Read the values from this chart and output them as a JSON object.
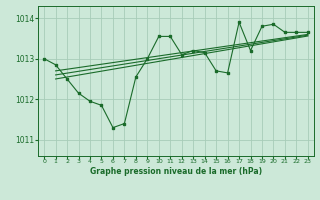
{
  "title": "Graphe pression niveau de la mer (hPa)",
  "background_color": "#cce8d8",
  "grid_color": "#a8ccb8",
  "line_color": "#1a6b2a",
  "xlim": [
    -0.5,
    23.5
  ],
  "ylim": [
    1010.6,
    1014.3
  ],
  "yticks": [
    1011,
    1012,
    1013,
    1014
  ],
  "xticks": [
    0,
    1,
    2,
    3,
    4,
    5,
    6,
    7,
    8,
    9,
    10,
    11,
    12,
    13,
    14,
    15,
    16,
    17,
    18,
    19,
    20,
    21,
    22,
    23
  ],
  "main_x": [
    0,
    1,
    2,
    3,
    4,
    5,
    6,
    7,
    8,
    9,
    10,
    11,
    12,
    13,
    14,
    15,
    16,
    17,
    18,
    19,
    20,
    21,
    22,
    23
  ],
  "main_y": [
    1013.0,
    1012.85,
    1012.5,
    1012.15,
    1011.95,
    1011.85,
    1011.3,
    1011.4,
    1012.55,
    1013.0,
    1013.55,
    1013.55,
    1013.1,
    1013.2,
    1013.15,
    1012.7,
    1012.65,
    1013.9,
    1013.2,
    1013.8,
    1013.85,
    1013.65,
    1013.65,
    1013.65
  ],
  "trend_lines": [
    {
      "x": [
        1,
        23
      ],
      "y": [
        1012.7,
        1013.6
      ]
    },
    {
      "x": [
        1,
        23
      ],
      "y": [
        1012.6,
        1013.58
      ]
    },
    {
      "x": [
        1,
        23
      ],
      "y": [
        1012.5,
        1013.56
      ]
    }
  ]
}
